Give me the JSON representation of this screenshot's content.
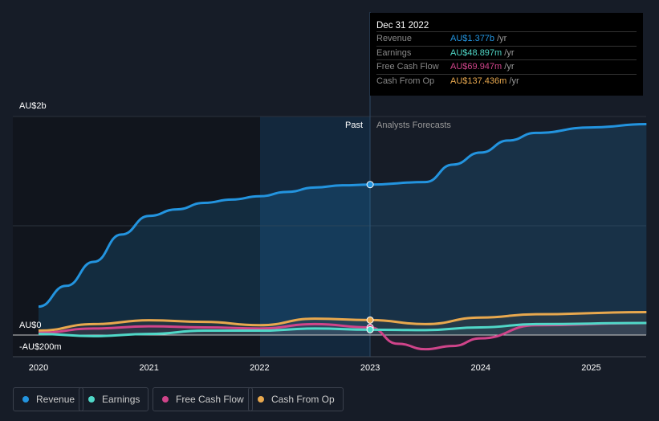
{
  "tooltip": {
    "date": "Dec 31 2022",
    "rows": [
      {
        "label": "Revenue",
        "value": "AU$1.377b",
        "unit": "/yr",
        "color": "#2394df"
      },
      {
        "label": "Earnings",
        "value": "AU$48.897m",
        "unit": "/yr",
        "color": "#50d8c8"
      },
      {
        "label": "Free Cash Flow",
        "value": "AU$69.947m",
        "unit": "/yr",
        "color": "#d0448a"
      },
      {
        "label": "Cash From Op",
        "value": "AU$137.436m",
        "unit": "/yr",
        "color": "#e8a84e"
      }
    ]
  },
  "chart_data": {
    "type": "line",
    "ylabels": [
      "AU$2b",
      "AU$0",
      "-AU$200m"
    ],
    "xticks": [
      "2020",
      "2021",
      "2022",
      "2023",
      "2024",
      "2025"
    ],
    "past_label": "Past",
    "forecast_label": "Analysts Forecasts",
    "ylim": [
      -0.2,
      2.0
    ],
    "yunit": "AU$ billions",
    "xlim": [
      2019.95,
      2025.5
    ],
    "divider_x": 2023,
    "series": [
      {
        "name": "Revenue",
        "color": "#2394df",
        "points": [
          [
            2020,
            0.26
          ],
          [
            2020.25,
            0.45
          ],
          [
            2020.5,
            0.67
          ],
          [
            2020.75,
            0.92
          ],
          [
            2021,
            1.09
          ],
          [
            2021.25,
            1.15
          ],
          [
            2021.5,
            1.21
          ],
          [
            2021.75,
            1.24
          ],
          [
            2022,
            1.27
          ],
          [
            2022.25,
            1.31
          ],
          [
            2022.5,
            1.35
          ],
          [
            2022.75,
            1.37
          ],
          [
            2023,
            1.377
          ],
          [
            2023.5,
            1.4
          ],
          [
            2023.75,
            1.56
          ],
          [
            2024,
            1.67
          ],
          [
            2024.25,
            1.78
          ],
          [
            2024.5,
            1.85
          ],
          [
            2025,
            1.9
          ],
          [
            2025.5,
            1.93
          ]
        ]
      },
      {
        "name": "Earnings",
        "color": "#50d8c8",
        "points": [
          [
            2020,
            0.01
          ],
          [
            2020.5,
            -0.01
          ],
          [
            2021,
            0.01
          ],
          [
            2021.5,
            0.04
          ],
          [
            2022,
            0.04
          ],
          [
            2022.5,
            0.06
          ],
          [
            2023,
            0.049
          ],
          [
            2023.5,
            0.045
          ],
          [
            2024,
            0.07
          ],
          [
            2024.5,
            0.1
          ],
          [
            2025.5,
            0.11
          ]
        ]
      },
      {
        "name": "Free Cash Flow",
        "color": "#d0448a",
        "points": [
          [
            2020,
            0.02
          ],
          [
            2020.5,
            0.06
          ],
          [
            2021,
            0.08
          ],
          [
            2021.5,
            0.07
          ],
          [
            2022,
            0.06
          ],
          [
            2022.5,
            0.1
          ],
          [
            2023,
            0.07
          ],
          [
            2023.25,
            -0.08
          ],
          [
            2023.5,
            -0.13
          ],
          [
            2023.75,
            -0.1
          ],
          [
            2024,
            -0.03
          ],
          [
            2024.5,
            0.09
          ],
          [
            2025.5,
            0.11
          ]
        ]
      },
      {
        "name": "Cash From Op",
        "color": "#e8a84e",
        "points": [
          [
            2020,
            0.04
          ],
          [
            2020.5,
            0.1
          ],
          [
            2021,
            0.135
          ],
          [
            2021.5,
            0.12
          ],
          [
            2022,
            0.09
          ],
          [
            2022.5,
            0.15
          ],
          [
            2023,
            0.137
          ],
          [
            2023.5,
            0.1
          ],
          [
            2024,
            0.16
          ],
          [
            2024.5,
            0.19
          ],
          [
            2025.5,
            0.21
          ]
        ]
      }
    ]
  }
}
